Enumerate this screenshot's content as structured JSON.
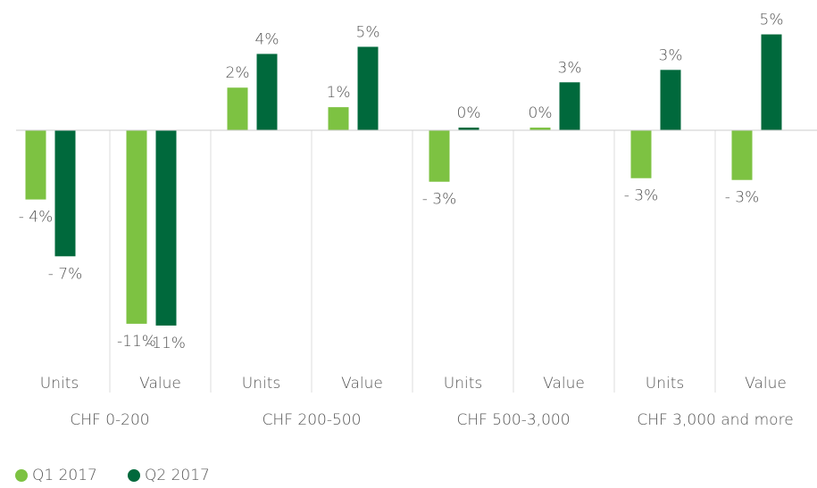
{
  "chart_data": {
    "type": "bar",
    "categories": [
      "Units",
      "Value",
      "Units",
      "Value",
      "Units",
      "Value",
      "Units",
      "Value"
    ],
    "groups": [
      "CHF 0-200",
      "CHF 200-500",
      "CHF 500-3,000",
      "CHF 3,000 and more"
    ],
    "series": [
      {
        "name": "Q1 2017",
        "color": "#7dc242",
        "values": [
          -3.9,
          -10.9,
          2.4,
          1.3,
          -2.9,
          0.15,
          -2.7,
          -2.8
        ],
        "value_labels": [
          "- 4%",
          "-11%",
          "2%",
          "1%",
          "- 3%",
          "0%",
          "- 3%",
          "- 3%"
        ]
      },
      {
        "name": "Q2 2017",
        "color": "#00693c",
        "values": [
          -7.1,
          -11.0,
          4.3,
          4.7,
          0.15,
          2.7,
          3.4,
          5.4
        ],
        "value_labels": [
          "- 7%",
          "-11%",
          "4%",
          "5%",
          "0%",
          "3%",
          "3%",
          "5%"
        ]
      }
    ],
    "ylim": [
      -12,
      6
    ]
  }
}
